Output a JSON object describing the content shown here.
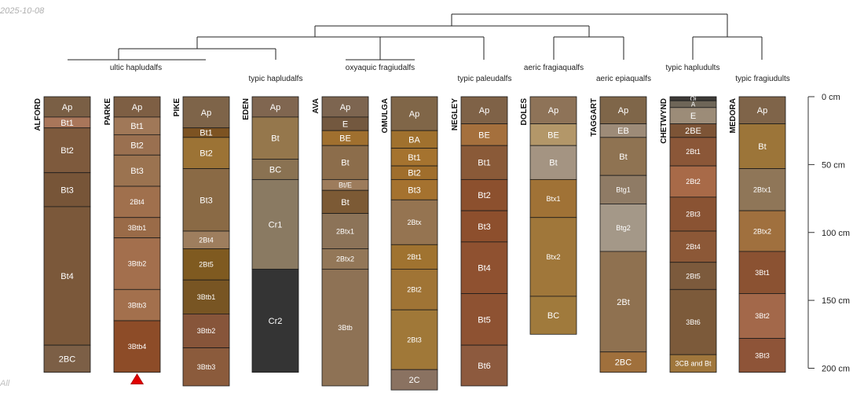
{
  "date": "2025-10-08",
  "corner_text": "All",
  "depth_axis": {
    "ticks": [
      "0 cm",
      "50 cm",
      "100 cm",
      "150 cm",
      "200 cm"
    ]
  },
  "groups": [
    {
      "label": "ultic hapludalfs"
    },
    {
      "label": "typic hapludalfs"
    },
    {
      "label": "oxyaquic fragiudalfs"
    },
    {
      "label": "typic paleudalfs"
    },
    {
      "label": "aeric fragiaqualfs"
    },
    {
      "label": "aeric epiaqualfs"
    },
    {
      "label": "typic hapludults"
    },
    {
      "label": "typic fragiudults"
    }
  ],
  "profiles": [
    {
      "name": "ALFORD",
      "horizons": [
        {
          "name": "Ap",
          "top": 0,
          "bottom": 15,
          "color": "#7a5f45"
        },
        {
          "name": "Bt1",
          "top": 15,
          "bottom": 23,
          "color": "#a9765a"
        },
        {
          "name": "Bt2",
          "top": 23,
          "bottom": 56,
          "color": "#7e5a3d"
        },
        {
          "name": "Bt3",
          "top": 56,
          "bottom": 81,
          "color": "#775538"
        },
        {
          "name": "Bt4",
          "top": 81,
          "bottom": 183,
          "color": "#7b583a"
        },
        {
          "name": "2BC",
          "top": 183,
          "bottom": 203,
          "color": "#7c5f46"
        }
      ]
    },
    {
      "name": "PARKE",
      "marker": true,
      "horizons": [
        {
          "name": "Ap",
          "top": 0,
          "bottom": 15,
          "color": "#7e5f44"
        },
        {
          "name": "Bt1",
          "top": 15,
          "bottom": 28,
          "color": "#a07858"
        },
        {
          "name": "Bt2",
          "top": 28,
          "bottom": 43,
          "color": "#9a7050"
        },
        {
          "name": "Bt3",
          "top": 43,
          "bottom": 66,
          "color": "#9b7350"
        },
        {
          "name": "2Bt4",
          "top": 66,
          "bottom": 89,
          "color": "#a0704d"
        },
        {
          "name": "3Btb1",
          "top": 89,
          "bottom": 104,
          "color": "#9a6b48"
        },
        {
          "name": "3Btb2",
          "top": 104,
          "bottom": 142,
          "color": "#a36f4d"
        },
        {
          "name": "3Btb3",
          "top": 142,
          "bottom": 165,
          "color": "#a3704d"
        },
        {
          "name": "3Btb4",
          "top": 165,
          "bottom": 203,
          "color": "#8d4c28"
        }
      ]
    },
    {
      "name": "PIKE",
      "horizons": [
        {
          "name": "Ap",
          "top": 0,
          "bottom": 23,
          "color": "#7e6449"
        },
        {
          "name": "Bt1",
          "top": 23,
          "bottom": 30,
          "color": "#7d5322"
        },
        {
          "name": "Bt2",
          "top": 30,
          "bottom": 53,
          "color": "#9c7335"
        },
        {
          "name": "Bt3",
          "top": 53,
          "bottom": 99,
          "color": "#8a6a45"
        },
        {
          "name": "2Bt4",
          "top": 99,
          "bottom": 112,
          "color": "#9e7e5e"
        },
        {
          "name": "2Bt5",
          "top": 112,
          "bottom": 135,
          "color": "#7f5a20"
        },
        {
          "name": "3Btb1",
          "top": 135,
          "bottom": 160,
          "color": "#785523"
        },
        {
          "name": "3Btb2",
          "top": 160,
          "bottom": 185,
          "color": "#87553a"
        },
        {
          "name": "3Btb3",
          "top": 185,
          "bottom": 213,
          "color": "#8b5b3c"
        }
      ]
    },
    {
      "name": "EDEN",
      "horizons": [
        {
          "name": "Ap",
          "top": 0,
          "bottom": 15,
          "color": "#806650"
        },
        {
          "name": "Bt",
          "top": 15,
          "bottom": 46,
          "color": "#95774c"
        },
        {
          "name": "BC",
          "top": 46,
          "bottom": 61,
          "color": "#8a7252"
        },
        {
          "name": "Cr1",
          "top": 61,
          "bottom": 127,
          "color": "#8a7a62"
        },
        {
          "name": "Cr2",
          "top": 127,
          "bottom": 203,
          "color": "#343434"
        }
      ]
    },
    {
      "name": "AVA",
      "horizons": [
        {
          "name": "Ap",
          "top": 0,
          "bottom": 15,
          "color": "#7d6550"
        },
        {
          "name": "E",
          "top": 15,
          "bottom": 25,
          "color": "#73583f"
        },
        {
          "name": "BE",
          "top": 25,
          "bottom": 36,
          "color": "#a0702f"
        },
        {
          "name": "Bt",
          "top": 36,
          "bottom": 61,
          "color": "#8c6d4b"
        },
        {
          "name": "Bt/E",
          "top": 61,
          "bottom": 69,
          "color": "#9d7c5c"
        },
        {
          "name": "Bt",
          "top": 69,
          "bottom": 86,
          "color": "#7c5a35"
        },
        {
          "name": "2Btx1",
          "top": 86,
          "bottom": 112,
          "color": "#8c7358"
        },
        {
          "name": "2Btx2",
          "top": 112,
          "bottom": 127,
          "color": "#937758"
        },
        {
          "name": "3Btb",
          "top": 127,
          "bottom": 213,
          "color": "#8e7255"
        }
      ]
    },
    {
      "name": "OMULGA",
      "horizons": [
        {
          "name": "Ap",
          "top": 0,
          "bottom": 25,
          "color": "#806648"
        },
        {
          "name": "BA",
          "top": 25,
          "bottom": 38,
          "color": "#a0712e"
        },
        {
          "name": "Bt1",
          "top": 38,
          "bottom": 51,
          "color": "#a5732f"
        },
        {
          "name": "Bt2",
          "top": 51,
          "bottom": 61,
          "color": "#a06e2c"
        },
        {
          "name": "Bt3",
          "top": 61,
          "bottom": 76,
          "color": "#a5722f"
        },
        {
          "name": "2Btx",
          "top": 76,
          "bottom": 109,
          "color": "#957451"
        },
        {
          "name": "2Bt1",
          "top": 109,
          "bottom": 127,
          "color": "#a07330"
        },
        {
          "name": "2Bt2",
          "top": 127,
          "bottom": 157,
          "color": "#a07435"
        },
        {
          "name": "2Bt3",
          "top": 157,
          "bottom": 201,
          "color": "#a07838"
        },
        {
          "name": "2C",
          "top": 201,
          "bottom": 216,
          "color": "#8a7261"
        }
      ]
    },
    {
      "name": "NEGLEY",
      "horizons": [
        {
          "name": "Ap",
          "top": 0,
          "bottom": 20,
          "color": "#7f6247"
        },
        {
          "name": "BE",
          "top": 20,
          "bottom": 36,
          "color": "#a5703d"
        },
        {
          "name": "Bt1",
          "top": 36,
          "bottom": 61,
          "color": "#8a5a38"
        },
        {
          "name": "Bt2",
          "top": 61,
          "bottom": 84,
          "color": "#8c502e"
        },
        {
          "name": "Bt3",
          "top": 84,
          "bottom": 107,
          "color": "#8d4f2d"
        },
        {
          "name": "Bt4",
          "top": 107,
          "bottom": 145,
          "color": "#8f5130"
        },
        {
          "name": "Bt5",
          "top": 145,
          "bottom": 183,
          "color": "#8e5232"
        },
        {
          "name": "Bt6",
          "top": 183,
          "bottom": 213,
          "color": "#8d5a3e"
        }
      ]
    },
    {
      "name": "DOLES",
      "horizons": [
        {
          "name": "Ap",
          "top": 0,
          "bottom": 20,
          "color": "#8e7358"
        },
        {
          "name": "BE",
          "top": 20,
          "bottom": 36,
          "color": "#b39769"
        },
        {
          "name": "Bt",
          "top": 36,
          "bottom": 61,
          "color": "#a49482"
        },
        {
          "name": "Btx1",
          "top": 61,
          "bottom": 89,
          "color": "#a07236"
        },
        {
          "name": "Btx2",
          "top": 89,
          "bottom": 147,
          "color": "#a0773a"
        },
        {
          "name": "BC",
          "top": 147,
          "bottom": 175,
          "color": "#a07a3c"
        }
      ]
    },
    {
      "name": "TAGGART",
      "horizons": [
        {
          "name": "Ap",
          "top": 0,
          "bottom": 20,
          "color": "#7f6649"
        },
        {
          "name": "EB",
          "top": 20,
          "bottom": 30,
          "color": "#9d8b78"
        },
        {
          "name": "Bt",
          "top": 30,
          "bottom": 58,
          "color": "#8f7352"
        },
        {
          "name": "Btg1",
          "top": 58,
          "bottom": 79,
          "color": "#8f7b65"
        },
        {
          "name": "Btg2",
          "top": 79,
          "bottom": 114,
          "color": "#a49888"
        },
        {
          "name": "2Bt",
          "top": 114,
          "bottom": 188,
          "color": "#8f7150"
        },
        {
          "name": "2BC",
          "top": 188,
          "bottom": 203,
          "color": "#a0703c"
        }
      ]
    },
    {
      "name": "CHETWYND",
      "horizons": [
        {
          "name": "Oi",
          "top": 0,
          "bottom": 3,
          "color": "#3d3a37"
        },
        {
          "name": "A",
          "top": 3,
          "bottom": 8,
          "color": "#6e6658"
        },
        {
          "name": "E",
          "top": 8,
          "bottom": 20,
          "color": "#9c8c78"
        },
        {
          "name": "2BE",
          "top": 20,
          "bottom": 30,
          "color": "#7d5436"
        },
        {
          "name": "2Bt1",
          "top": 30,
          "bottom": 51,
          "color": "#8b5738"
        },
        {
          "name": "2Bt2",
          "top": 51,
          "bottom": 74,
          "color": "#a86a48"
        },
        {
          "name": "2Bt3",
          "top": 74,
          "bottom": 99,
          "color": "#8a5333"
        },
        {
          "name": "2Bt4",
          "top": 99,
          "bottom": 122,
          "color": "#8c5837"
        },
        {
          "name": "2Bt5",
          "top": 122,
          "bottom": 142,
          "color": "#7c5a3c"
        },
        {
          "name": "3Bt6",
          "top": 142,
          "bottom": 190,
          "color": "#7c5a3a"
        },
        {
          "name": "3CB and Bt",
          "top": 190,
          "bottom": 203,
          "color": "#a0773c"
        }
      ]
    },
    {
      "name": "MEDORA",
      "horizons": [
        {
          "name": "Ap",
          "top": 0,
          "bottom": 20,
          "color": "#7f6449"
        },
        {
          "name": "Bt",
          "top": 20,
          "bottom": 53,
          "color": "#9c7539"
        },
        {
          "name": "2Btx1",
          "top": 53,
          "bottom": 84,
          "color": "#8f7658"
        },
        {
          "name": "2Btx2",
          "top": 84,
          "bottom": 114,
          "color": "#a0703e"
        },
        {
          "name": "3Bt1",
          "top": 114,
          "bottom": 145,
          "color": "#8b5232"
        },
        {
          "name": "3Bt2",
          "top": 145,
          "bottom": 178,
          "color": "#a3684a"
        },
        {
          "name": "3Bt3",
          "top": 178,
          "bottom": 203,
          "color": "#8e5438"
        }
      ]
    }
  ]
}
